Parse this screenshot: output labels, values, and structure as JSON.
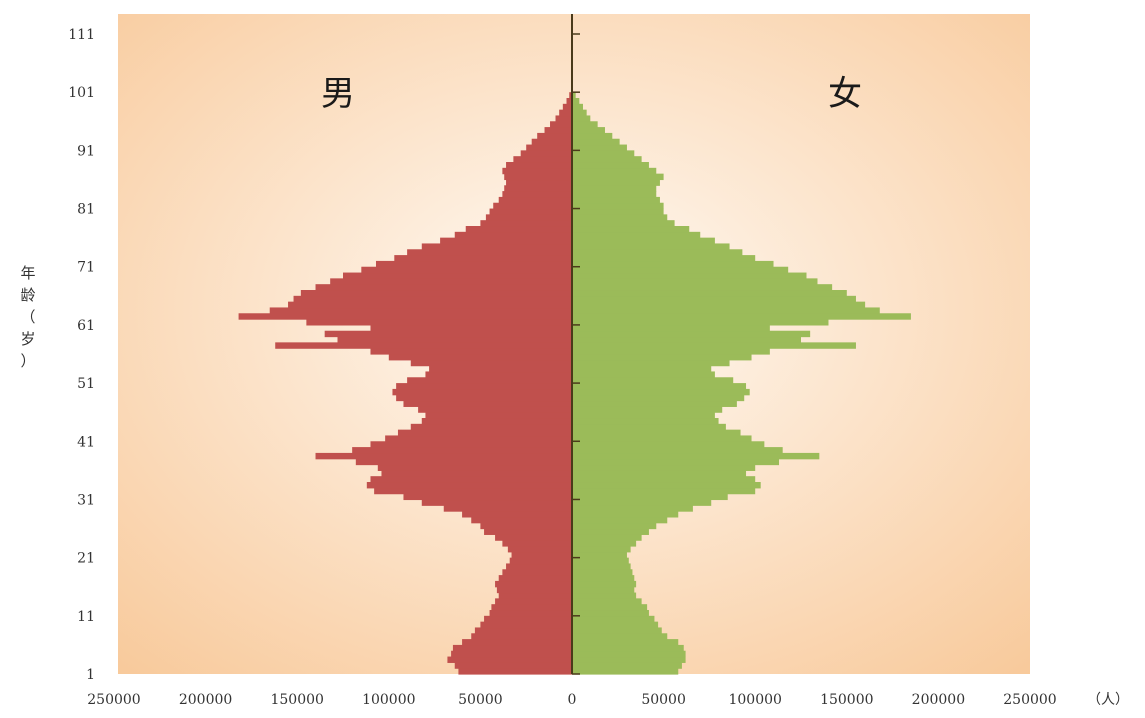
{
  "chart_data": {
    "type": "bar",
    "orientation": "horizontal",
    "layout": "population-pyramid",
    "grid": false,
    "legend": "none",
    "left_label": "男",
    "right_label": "女",
    "ylabel": "年龄（岁）",
    "unit_label": "（人）",
    "x_ticks": [
      "250000",
      "200000",
      "150000",
      "100000",
      "50000",
      "0",
      "50000",
      "100000",
      "150000",
      "200000",
      "250000"
    ],
    "y_ticks": [
      "1",
      "11",
      "21",
      "31",
      "41",
      "51",
      "61",
      "71",
      "81",
      "91",
      "101",
      "111"
    ],
    "xlim": [
      -250000,
      250000
    ],
    "ylim": [
      1,
      111
    ],
    "colors": {
      "male": "#c0504d",
      "female": "#9bbb59",
      "axis": "#4a3a1a",
      "background_center": "#fffaf4",
      "background_edge": "#f8c99a"
    },
    "categories": [
      1,
      2,
      3,
      4,
      5,
      6,
      7,
      8,
      9,
      10,
      11,
      12,
      13,
      14,
      15,
      16,
      17,
      18,
      19,
      20,
      21,
      22,
      23,
      24,
      25,
      26,
      27,
      28,
      29,
      30,
      31,
      32,
      33,
      34,
      35,
      36,
      37,
      38,
      39,
      40,
      41,
      42,
      43,
      44,
      45,
      46,
      47,
      48,
      49,
      50,
      51,
      52,
      53,
      54,
      55,
      56,
      57,
      58,
      59,
      60,
      61,
      62,
      63,
      64,
      65,
      66,
      67,
      68,
      69,
      70,
      71,
      72,
      73,
      74,
      75,
      76,
      77,
      78,
      79,
      80,
      81,
      82,
      83,
      84,
      85,
      86,
      87,
      88,
      89,
      90,
      91,
      92,
      93,
      94,
      95,
      96,
      97,
      98,
      99,
      100
    ],
    "series": [
      {
        "name": "男",
        "values": [
          62000,
          64000,
          68000,
          66000,
          65000,
          60000,
          55000,
          53000,
          50000,
          48000,
          45000,
          44000,
          42000,
          40000,
          41000,
          42000,
          40000,
          38000,
          36000,
          34000,
          33000,
          35000,
          38000,
          42000,
          48000,
          50000,
          55000,
          60000,
          70000,
          82000,
          92000,
          108000,
          112000,
          110000,
          104000,
          106000,
          118000,
          140000,
          120000,
          110000,
          102000,
          95000,
          88000,
          82000,
          80000,
          84000,
          92000,
          96000,
          98000,
          96000,
          90000,
          80000,
          78000,
          88000,
          100000,
          110000,
          162000,
          128000,
          135000,
          110000,
          145000,
          182000,
          165000,
          155000,
          152000,
          148000,
          140000,
          132000,
          125000,
          115000,
          107000,
          97000,
          90000,
          82000,
          72000,
          64000,
          58000,
          50000,
          47000,
          45000,
          43000,
          40000,
          38000,
          37000,
          36000,
          37000,
          38000,
          36000,
          32000,
          28000,
          25000,
          22000,
          19000,
          15000,
          12000,
          9000,
          7000,
          5000,
          3000,
          1500
        ]
      },
      {
        "name": "女",
        "values": [
          58000,
          60000,
          62000,
          62000,
          61000,
          58000,
          52000,
          49000,
          47000,
          45000,
          42000,
          41000,
          38000,
          35000,
          34000,
          35000,
          34000,
          33000,
          32000,
          31000,
          30000,
          32000,
          35000,
          38000,
          42000,
          46000,
          52000,
          58000,
          66000,
          76000,
          85000,
          100000,
          103000,
          100000,
          95000,
          100000,
          113000,
          135000,
          115000,
          105000,
          98000,
          92000,
          84000,
          80000,
          78000,
          82000,
          90000,
          94000,
          97000,
          95000,
          88000,
          78000,
          76000,
          86000,
          98000,
          108000,
          155000,
          125000,
          130000,
          108000,
          140000,
          185000,
          168000,
          160000,
          155000,
          150000,
          142000,
          134000,
          128000,
          118000,
          110000,
          100000,
          93000,
          86000,
          78000,
          70000,
          64000,
          56000,
          52000,
          50000,
          50000,
          48000,
          46000,
          46000,
          48000,
          50000,
          46000,
          42000,
          38000,
          34000,
          30000,
          26000,
          22000,
          18000,
          14000,
          10000,
          8000,
          6000,
          4000,
          2000
        ]
      }
    ]
  }
}
